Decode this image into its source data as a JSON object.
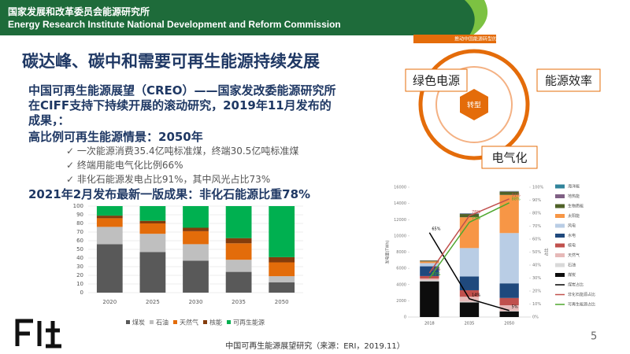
{
  "header": {
    "org_cn": "国家发展和改革委员会能源研究所",
    "org_en": "Energy Research Institute National Development and Reform Commission"
  },
  "slide": {
    "title": "碳达峰、碳中和需要可再生能源持续发展",
    "intro": "中国可再生能源展望（CREO）——国家发改委能源研究所在CIFF支持下持续开展的滚动研究，2019年11月发布的成果，：",
    "scenario": "高比例可再生能源情景：2050年",
    "bullets": [
      "一次能源消费35.4亿吨标准煤，终端30.5亿吨标准煤",
      "终端用能电气化比例66%",
      "非化石能源发电占比91%，其中风光占比73%"
    ],
    "latest": "2021年2月发布最新一版成果：非化石能源比重78%",
    "footer": "中国可再生能源展望研究（来源：ERI，2019.11）",
    "page": "5"
  },
  "diagram": {
    "title": "推动中国能源转型的驱动因素",
    "center": "转型",
    "labels": [
      "绿色电源",
      "能源效率",
      "电气化"
    ]
  },
  "chart_data": [
    {
      "type": "bar",
      "stacked": true,
      "categories": [
        "2020",
        "2025",
        "2030",
        "2035",
        "2050"
      ],
      "ylim": [
        0,
        100
      ],
      "yticks": [
        0,
        10,
        20,
        30,
        40,
        50,
        60,
        70,
        80,
        90,
        100
      ],
      "grid": true,
      "series": [
        {
          "name": "煤炭",
          "color": "#595959",
          "values": [
            56,
            47,
            37,
            24,
            12
          ]
        },
        {
          "name": "石油",
          "color": "#bfbfbf",
          "values": [
            20,
            21,
            19,
            14,
            7
          ]
        },
        {
          "name": "天然气",
          "color": "#e36c0a",
          "values": [
            10,
            12,
            15,
            19,
            16
          ]
        },
        {
          "name": "核能",
          "color": "#843c0c",
          "values": [
            3,
            3,
            4,
            6,
            6
          ]
        },
        {
          "name": "可再生能源",
          "color": "#00b050",
          "values": [
            11,
            17,
            25,
            37,
            59
          ]
        }
      ]
    },
    {
      "type": "bar",
      "stacked": true,
      "categories": [
        "2018",
        "2035",
        "2050"
      ],
      "y_label": "发电量(TWh)",
      "y2_label": "占比",
      "ylim": [
        0,
        16000
      ],
      "yticks": [
        0,
        2000,
        4000,
        6000,
        8000,
        10000,
        12000,
        14000,
        16000
      ],
      "y2lim": [
        0,
        100
      ],
      "y2ticks": [
        {
          "value": 0,
          "label": "0%"
        },
        {
          "value": 10,
          "label": "10%"
        },
        {
          "value": 20,
          "label": "20%"
        },
        {
          "value": 30,
          "label": "30%"
        },
        {
          "value": 40,
          "label": "40%"
        },
        {
          "value": 50,
          "label": "50%"
        },
        {
          "value": 60,
          "label": "60%"
        },
        {
          "value": 70,
          "label": "70%"
        },
        {
          "value": 80,
          "label": "80%"
        },
        {
          "value": 90,
          "label": "90%"
        },
        {
          "value": 100,
          "label": "100%"
        }
      ],
      "series": [
        {
          "name": "海洋能",
          "color": "#31849b",
          "values": [
            10,
            30,
            30
          ]
        },
        {
          "name": "地热能",
          "color": "#7f6084",
          "values": [
            30,
            50,
            50
          ]
        },
        {
          "name": "生物质能",
          "color": "#4f6228",
          "values": [
            100,
            400,
            400
          ]
        },
        {
          "name": "太阳能",
          "color": "#f79646",
          "values": [
            200,
            3800,
            4700
          ]
        },
        {
          "name": "风电",
          "color": "#b9cde5",
          "values": [
            400,
            3500,
            6200
          ]
        },
        {
          "name": "水电",
          "color": "#1f497d",
          "values": [
            1200,
            1700,
            1800
          ]
        },
        {
          "name": "核电",
          "color": "#c0504d",
          "values": [
            300,
            800,
            900
          ]
        },
        {
          "name": "天然气",
          "color": "#e6b9b8",
          "values": [
            200,
            600,
            700
          ]
        },
        {
          "name": "石油",
          "color": "#d9d9d9",
          "values": [
            150,
            100,
            50
          ]
        },
        {
          "name": "煤炭",
          "color": "#0d0d0d",
          "values": [
            4400,
            1800,
            700
          ]
        },
        {
          "name": "煤炭占比",
          "type": "line",
          "axis": "y2",
          "color": "#000000",
          "values": [
            65,
            14,
            5
          ],
          "value_labels": [
            "65%",
            "14%",
            "5%"
          ]
        },
        {
          "name": "非化石能源占比",
          "type": "line",
          "axis": "y2",
          "color": "#c0504d",
          "values": [
            34,
            78,
            91
          ],
          "value_labels": [
            "34%",
            "78%",
            "91%"
          ]
        },
        {
          "name": "可再生能源占比",
          "type": "line",
          "axis": "y2",
          "color": "#4ea72e",
          "values": [
            30,
            73,
            88
          ],
          "value_labels": [
            "30%",
            "73%",
            "88%"
          ]
        }
      ]
    }
  ]
}
